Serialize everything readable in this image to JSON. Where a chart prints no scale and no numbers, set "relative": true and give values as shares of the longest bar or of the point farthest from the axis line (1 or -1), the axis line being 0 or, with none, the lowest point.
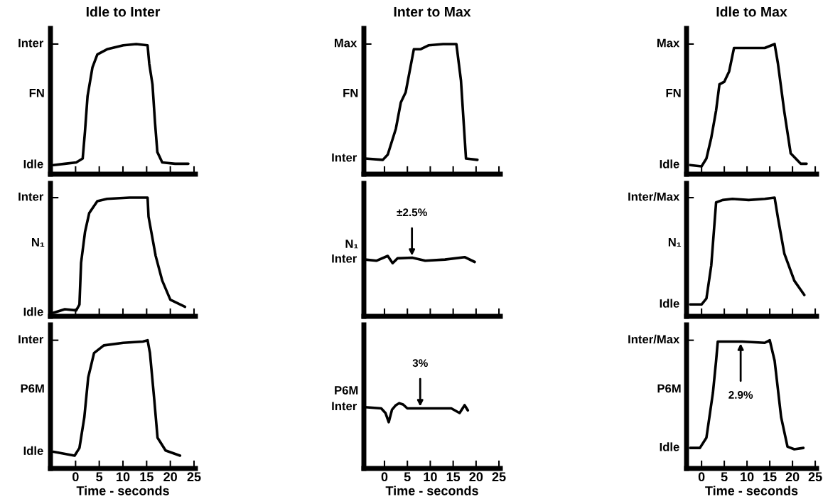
{
  "chart_data": [
    {
      "type": "line",
      "relative": true,
      "title": "Idle to Inter",
      "ylabel": "FN",
      "xlim": [
        -5.3,
        25.3
      ],
      "xticks": [
        0,
        5,
        10,
        15,
        20,
        25
      ],
      "tick_labels": false,
      "annotations": [
        "Idle",
        "Inter"
      ],
      "series": [
        {
          "color": "#000000",
          "x": [
            -4.66,
            -2.26,
            0.14,
            1.5,
            1.99,
            2.53,
            3.56,
            4.59,
            6.64,
            10.07,
            12.8,
            15.2,
            15.55,
            16.23,
            16.78,
            17.26,
            18.29,
            21.0,
            23.8
          ],
          "values": [
            0.07,
            0.08,
            0.09,
            0.12,
            0.33,
            0.6,
            0.82,
            0.92,
            0.96,
            0.99,
            1.0,
            0.99,
            0.85,
            0.69,
            0.39,
            0.17,
            0.09,
            0.08,
            0.08
          ]
        }
      ]
    },
    {
      "type": "line",
      "relative": true,
      "title": "Inter to Max",
      "ylabel": "FN",
      "xlim": [
        -4.5,
        25.3
      ],
      "xticks": [
        0,
        5,
        10,
        15,
        20,
        25
      ],
      "tick_labels": false,
      "annotations": [
        "Inter",
        "Max"
      ],
      "series": [
        {
          "color": "#000000",
          "x": [
            -4.27,
            -0.36,
            0.71,
            2.49,
            3.56,
            4.63,
            6.41,
            7.83,
            9.6,
            12.8,
            15.7,
            16.7,
            17.8,
            20.3
          ],
          "values": [
            0.12,
            0.11,
            0.15,
            0.35,
            0.55,
            0.63,
            0.96,
            0.96,
            0.99,
            1.0,
            1.0,
            0.72,
            0.12,
            0.11
          ]
        }
      ]
    },
    {
      "type": "line",
      "relative": true,
      "title": "Idle to Max",
      "ylabel": "FN",
      "xlim": [
        -3.3,
        25.3
      ],
      "xticks": [
        0,
        5,
        10,
        15,
        20,
        25
      ],
      "tick_labels": false,
      "annotations": [
        "Idle",
        "Max"
      ],
      "series": [
        {
          "color": "#000000",
          "x": [
            -2.5,
            0.0,
            1.07,
            2.14,
            3.2,
            3.93,
            5.0,
            6.07,
            7.14,
            8.93,
            13.9,
            16.07,
            16.8,
            18.2,
            19.6,
            21.8,
            23.1
          ],
          "values": [
            0.07,
            0.06,
            0.12,
            0.28,
            0.49,
            0.69,
            0.71,
            0.79,
            0.97,
            0.97,
            0.97,
            1.0,
            0.85,
            0.48,
            0.16,
            0.08,
            0.08
          ]
        }
      ]
    },
    {
      "type": "line",
      "relative": true,
      "ylabel": "N₁",
      "xlim": [
        -5.3,
        25.3
      ],
      "xticks": [
        0,
        5,
        10,
        15,
        20,
        25
      ],
      "tick_labels": false,
      "annotations": [
        "Idle",
        "Inter"
      ],
      "series": [
        {
          "color": "#000000",
          "x": [
            -4.66,
            -2.26,
            0.14,
            0.82,
            1.16,
            1.99,
            2.88,
            4.59,
            6.64,
            11.4,
            15.2,
            15.4,
            16.9,
            18.3,
            20.0,
            23.1
          ],
          "values": [
            0.03,
            0.06,
            0.05,
            0.1,
            0.45,
            0.71,
            0.87,
            0.97,
            0.99,
            1.0,
            1.0,
            0.84,
            0.51,
            0.3,
            0.14,
            0.08
          ]
        }
      ]
    },
    {
      "type": "line",
      "relative": true,
      "ylabel": "N₁",
      "xlim": [
        -4.5,
        25.3
      ],
      "xticks": [
        0,
        5,
        10,
        15,
        20,
        25
      ],
      "tick_labels": false,
      "annotations": [
        "Inter",
        {
          "text": "±2.5%",
          "x": 6,
          "y": 0.97
        }
      ],
      "series": [
        {
          "color": "#000000",
          "x": [
            -4.27,
            -1.78,
            0.71,
            1.78,
            2.85,
            6.05,
            8.9,
            13.2,
            17.5,
            19.7
          ],
          "values": [
            0.94,
            0.92,
            1.0,
            0.88,
            0.96,
            0.97,
            0.92,
            0.94,
            0.98,
            0.9
          ]
        }
      ]
    },
    {
      "type": "line",
      "relative": true,
      "ylabel": "N₁",
      "xlim": [
        -3.3,
        25.3
      ],
      "xticks": [
        0,
        5,
        10,
        15,
        20,
        25
      ],
      "tick_labels": false,
      "annotations": [
        "Idle",
        "Inter/Max"
      ],
      "series": [
        {
          "color": "#000000",
          "x": [
            -2.5,
            0.0,
            1.07,
            2.14,
            3.2,
            4.64,
            6.79,
            10.36,
            13.9,
            16.07,
            16.8,
            18.2,
            20.4,
            22.6
          ],
          "values": [
            0.1,
            0.1,
            0.15,
            0.43,
            0.96,
            0.98,
            0.99,
            0.98,
            0.99,
            1.0,
            0.83,
            0.53,
            0.3,
            0.18
          ]
        }
      ]
    },
    {
      "type": "line",
      "relative": true,
      "ylabel": "P6M",
      "xlabel": "Time - seconds",
      "xlim": [
        -5.3,
        25.3
      ],
      "xticks": [
        0,
        5,
        10,
        15,
        20,
        25
      ],
      "tick_labels": "x",
      "annotations": [
        "Idle",
        "Inter"
      ],
      "series": [
        {
          "color": "#000000",
          "x": [
            -4.66,
            -0.2,
            0.82,
            1.85,
            2.67,
            3.9,
            5.96,
            10.07,
            14.2,
            15.2,
            15.7,
            16.6,
            17.3,
            19.0,
            22.05
          ],
          "values": [
            0.13,
            0.1,
            0.16,
            0.4,
            0.71,
            0.9,
            0.96,
            0.98,
            0.99,
            1.0,
            0.9,
            0.54,
            0.24,
            0.14,
            0.1
          ]
        }
      ]
    },
    {
      "type": "line",
      "relative": true,
      "ylabel": "P6M",
      "xlabel": "Time - seconds",
      "xlim": [
        -4.5,
        25.3
      ],
      "xticks": [
        0,
        5,
        10,
        15,
        20,
        25
      ],
      "tick_labels": "x",
      "annotations": [
        "Inter",
        {
          "text": "3%",
          "x": 7.8,
          "y": 0.92
        }
      ],
      "series": [
        {
          "color": "#000000",
          "x": [
            -4.27,
            -0.71,
            0.21,
            0.93,
            1.64,
            2.49,
            3.2,
            4.06,
            4.99,
            8.19,
            14.6,
            16.4,
            17.5,
            18.2
          ],
          "values": [
            0.94,
            0.92,
            0.85,
            0.71,
            0.9,
            0.97,
            1.0,
            0.98,
            0.92,
            0.92,
            0.92,
            0.85,
            0.97,
            0.89
          ]
        }
      ]
    },
    {
      "type": "line",
      "relative": true,
      "ylabel": "P6M",
      "xlabel": "Time - seconds",
      "xlim": [
        -3.3,
        25.3
      ],
      "xticks": [
        0,
        5,
        10,
        15,
        20,
        25
      ],
      "tick_labels": "x",
      "annotations": [
        "Idle",
        "Inter/Max",
        {
          "text": "2.9%",
          "x": 8.6,
          "y": 0.99
        }
      ],
      "series": [
        {
          "color": "#000000",
          "x": [
            -2.5,
            -0.36,
            1.07,
            2.5,
            3.2,
            3.57,
            6.07,
            8.93,
            13.9,
            15.0,
            16.07,
            17.5,
            18.9,
            20.4,
            22.4
          ],
          "values": [
            0.16,
            0.16,
            0.24,
            0.59,
            0.84,
            0.99,
            0.99,
            0.99,
            0.98,
            1.0,
            0.84,
            0.4,
            0.17,
            0.15,
            0.16
          ]
        }
      ]
    }
  ]
}
